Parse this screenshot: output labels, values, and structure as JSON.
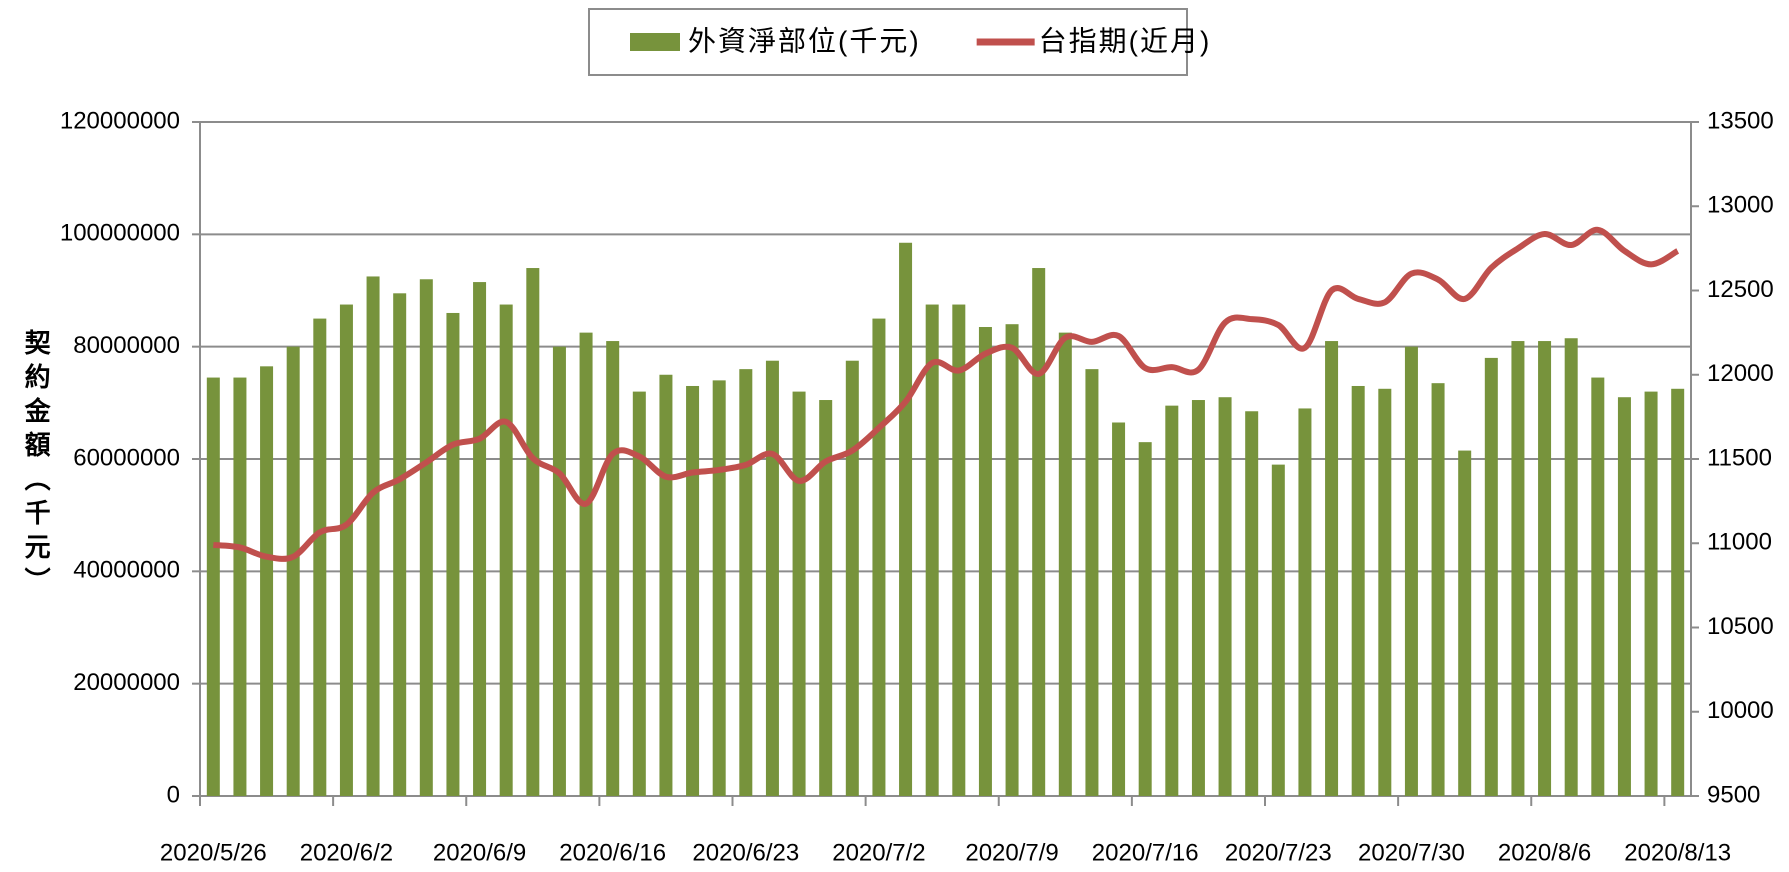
{
  "chart_data": {
    "type": "bar",
    "y_label": "契約金額（千元）",
    "categories": [
      "2020/5/26",
      null,
      null,
      null,
      null,
      "2020/6/2",
      null,
      null,
      null,
      null,
      "2020/6/9",
      null,
      null,
      null,
      null,
      "2020/6/16",
      null,
      null,
      null,
      null,
      "2020/6/23",
      null,
      null,
      null,
      null,
      "2020/7/2",
      null,
      null,
      null,
      null,
      "2020/7/9",
      null,
      null,
      null,
      null,
      "2020/7/16",
      null,
      null,
      null,
      null,
      "2020/7/23",
      null,
      null,
      null,
      null,
      "2020/7/30",
      null,
      null,
      null,
      null,
      "2020/8/6",
      null,
      null,
      null,
      null,
      "2020/8/13"
    ],
    "series": [
      {
        "name": "外資淨部位(千元)",
        "type": "bar",
        "color": "#77933c",
        "values": [
          74500000,
          74500000,
          76500000,
          80000000,
          85000000,
          87500000,
          92500000,
          89500000,
          92000000,
          86000000,
          91500000,
          87500000,
          94000000,
          80000000,
          82500000,
          81000000,
          72000000,
          75000000,
          73000000,
          74000000,
          76000000,
          77500000,
          72000000,
          70500000,
          77500000,
          85000000,
          98500000,
          87500000,
          87500000,
          83500000,
          84000000,
          94000000,
          82500000,
          76000000,
          66500000,
          63000000,
          69500000,
          70500000,
          71000000,
          68500000,
          59000000,
          69000000,
          81000000,
          73000000,
          72500000,
          80000000,
          73500000,
          61500000,
          78000000,
          81000000,
          81000000,
          81500000,
          74500000,
          71000000,
          72000000,
          72500000
        ]
      },
      {
        "name": "台指期(近月)",
        "type": "line",
        "axis": "y2",
        "color": "#c0504d",
        "values": [
          10990,
          10975,
          10920,
          10920,
          11065,
          11110,
          11300,
          11380,
          11480,
          11585,
          11620,
          11720,
          11505,
          11415,
          11235,
          11530,
          11515,
          11395,
          11420,
          11435,
          11465,
          11530,
          11370,
          11485,
          11550,
          11685,
          11840,
          12070,
          12025,
          12125,
          12160,
          12005,
          12220,
          12195,
          12230,
          12040,
          12045,
          12030,
          12310,
          12330,
          12295,
          12160,
          12500,
          12450,
          12430,
          12600,
          12565,
          12450,
          12635,
          12750,
          12835,
          12770,
          12860,
          12735,
          12655,
          12735
        ]
      }
    ],
    "ylim": [
      0,
      120000000
    ],
    "yticks": [
      0,
      20000000,
      40000000,
      60000000,
      80000000,
      100000000,
      120000000
    ],
    "y2lim": [
      9500,
      13500
    ],
    "y2ticks": [
      9500,
      10000,
      10500,
      11000,
      11500,
      12000,
      12500,
      13000,
      13500
    ],
    "grid": true,
    "legend": "top"
  }
}
